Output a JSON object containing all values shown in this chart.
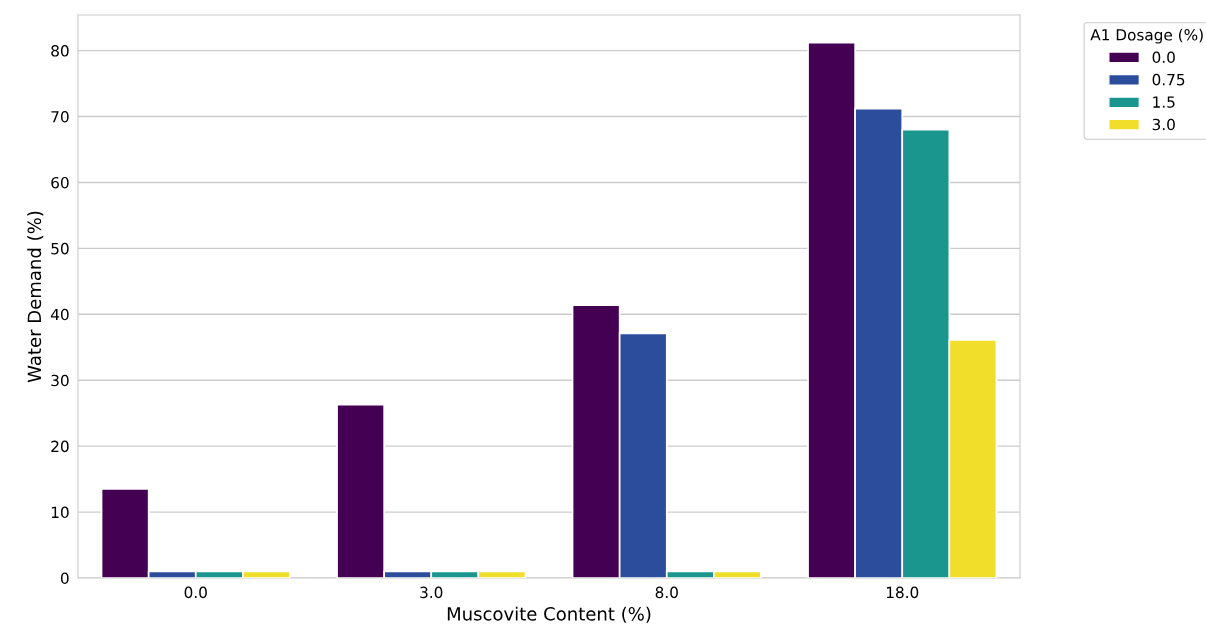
{
  "chart_data": {
    "type": "bar",
    "xlabel": "Muscovite Content (%)",
    "ylabel": "Water Demand (%)",
    "legend_title": "A1 Dosage (%)",
    "categories": [
      "0.0",
      "3.0",
      "8.0",
      "18.0"
    ],
    "series": [
      {
        "name": "0.0",
        "color": "#440154",
        "values": [
          13.5,
          26.3,
          41.4,
          81.2
        ]
      },
      {
        "name": "0.75",
        "color": "#2c4c9c",
        "values": [
          1,
          1,
          37.1,
          71.2
        ]
      },
      {
        "name": "1.5",
        "color": "#1a968f",
        "values": [
          1,
          1,
          1,
          68.0
        ]
      },
      {
        "name": "3.0",
        "color": "#f0de2a",
        "values": [
          1,
          1,
          1,
          36.1
        ]
      }
    ],
    "ylim": [
      0,
      85.4
    ],
    "yticks": [
      0,
      10,
      20,
      30,
      40,
      50,
      60,
      70,
      80
    ],
    "grid": "y",
    "legend": "top right"
  }
}
